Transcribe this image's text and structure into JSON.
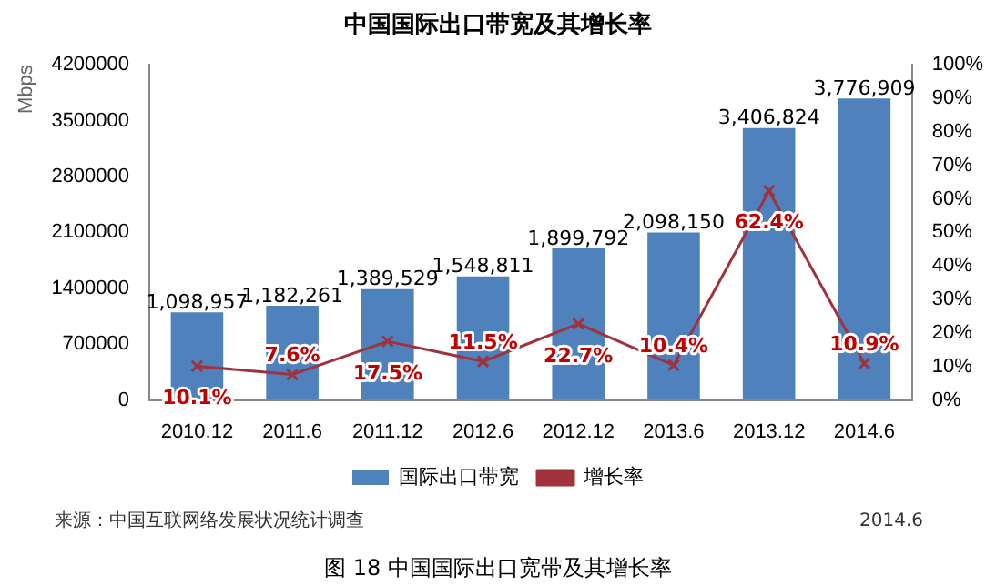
{
  "chart_data": {
    "type": "bar",
    "title": "中国国际出口带宽及其增长率",
    "ylabel": "Mbps",
    "categories": [
      "2010.12",
      "2011.6",
      "2011.12",
      "2012.6",
      "2012.12",
      "2013.6",
      "2013.12",
      "2014.6"
    ],
    "series": [
      {
        "name": "国际出口带宽",
        "color": "#4f81bd",
        "values": [
          1098957,
          1182261,
          1389529,
          1548811,
          1899792,
          2098150,
          3406824,
          3776909
        ],
        "value_labels": [
          "1,098,957",
          "1,182,261",
          "1,389,529",
          "1,548,811",
          "1,899,792",
          "2,098,150",
          "3,406,824",
          "3,776,909"
        ]
      },
      {
        "name": "增长率",
        "type": "line",
        "axis": "y2",
        "color": "#a0323c",
        "marker": "cross",
        "values": [
          10.1,
          7.6,
          17.5,
          11.5,
          22.7,
          10.4,
          62.4,
          10.9
        ],
        "value_labels": [
          "10.1%",
          "7.6%",
          "17.5%",
          "11.5%",
          "22.7%",
          "10.4%",
          "62.4%",
          "10.9%"
        ]
      }
    ],
    "ylim": [
      0,
      4200000
    ],
    "yticks": [
      0,
      700000,
      1400000,
      2100000,
      2800000,
      3500000,
      4200000
    ],
    "y2lim": [
      0,
      100
    ],
    "y2ticks": [
      {
        "value": 0,
        "label": "0%"
      },
      {
        "value": 10,
        "label": "10%"
      },
      {
        "value": 20,
        "label": "20%"
      },
      {
        "value": 30,
        "label": "30%"
      },
      {
        "value": 40,
        "label": "40%"
      },
      {
        "value": 50,
        "label": "50%"
      },
      {
        "value": 60,
        "label": "60%"
      },
      {
        "value": 70,
        "label": "70%"
      },
      {
        "value": 80,
        "label": "80%"
      },
      {
        "value": 90,
        "label": "90%"
      },
      {
        "value": 100,
        "label": "100%"
      }
    ],
    "legend": "bottom",
    "grid": false,
    "annotations": [
      "来源：中国互联网络发展状况统计调查",
      "2014.6",
      "图 18 中国国际出口宽带及其增长率"
    ]
  }
}
